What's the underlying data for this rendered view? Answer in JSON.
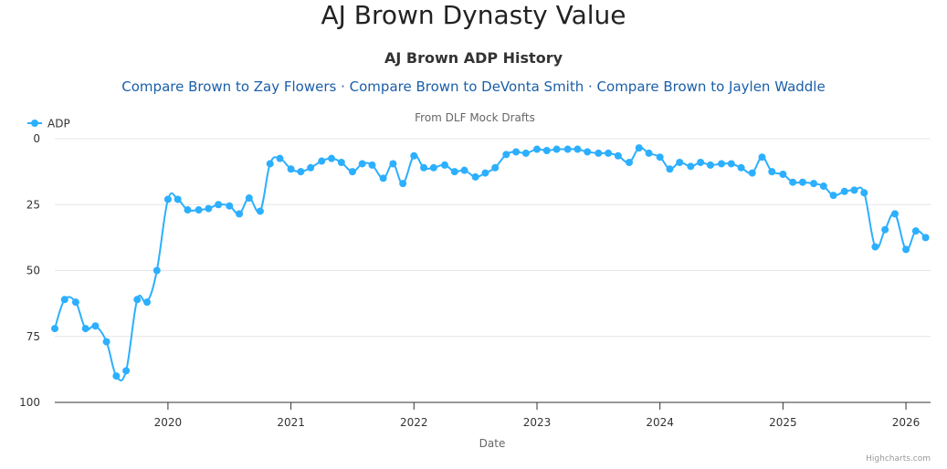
{
  "page": {
    "title": "AJ Brown Dynasty Value"
  },
  "compare_links": [
    {
      "label": "Compare Brown to Zay Flowers"
    },
    {
      "label": "Compare Brown to DeVonta Smith"
    },
    {
      "label": "Compare Brown to Jaylen Waddle"
    }
  ],
  "separator": " · ",
  "colors": {
    "series": "#2caffe",
    "link": "#1a5fa8",
    "grid": "#e6e6e6"
  },
  "chart_data": {
    "type": "line",
    "title": "AJ Brown ADP History",
    "subtitle": "From DLF Mock Drafts",
    "xlabel": "Date",
    "ylabel": "",
    "legend": "top-left",
    "credits": "Highcharts.com",
    "grid": true,
    "ylim": [
      0,
      100
    ],
    "y_reversed": true,
    "y_ticks": [
      "0",
      "25",
      "50",
      "75",
      "100"
    ],
    "xlim": [
      2019.08,
      2026.2
    ],
    "x_ticks": [
      "2020",
      "2021",
      "2022",
      "2023",
      "2024",
      "2025",
      "2026"
    ],
    "series": [
      {
        "name": "ADP",
        "x": [
          2019.08,
          2019.16,
          2019.25,
          2019.33,
          2019.41,
          2019.5,
          2019.58,
          2019.66,
          2019.75,
          2019.83,
          2019.91,
          2020.0,
          2020.08,
          2020.16,
          2020.25,
          2020.33,
          2020.41,
          2020.5,
          2020.58,
          2020.66,
          2020.75,
          2020.83,
          2020.91,
          2021.0,
          2021.08,
          2021.16,
          2021.25,
          2021.33,
          2021.41,
          2021.5,
          2021.58,
          2021.66,
          2021.75,
          2021.83,
          2021.91,
          2022.0,
          2022.08,
          2022.16,
          2022.25,
          2022.33,
          2022.41,
          2022.5,
          2022.58,
          2022.66,
          2022.75,
          2022.83,
          2022.91,
          2023.0,
          2023.08,
          2023.16,
          2023.25,
          2023.33,
          2023.41,
          2023.5,
          2023.58,
          2023.66,
          2023.75,
          2023.83,
          2023.91,
          2024.0,
          2024.08,
          2024.16,
          2024.25,
          2024.33,
          2024.41,
          2024.5,
          2024.58,
          2024.66,
          2024.75,
          2024.83,
          2024.91,
          2025.0,
          2025.08,
          2025.16,
          2025.25,
          2025.33,
          2025.41,
          2025.5,
          2025.58,
          2025.66,
          2025.75,
          2025.83,
          2025.91,
          2026.0,
          2026.08,
          2026.16
        ],
        "values": [
          72,
          61,
          62,
          72,
          71,
          77,
          90,
          88,
          61,
          62,
          50,
          23,
          23,
          27,
          27,
          26.5,
          25,
          25.5,
          28.5,
          22.5,
          27.5,
          9.5,
          7.5,
          11.5,
          12.5,
          11,
          8.5,
          7.5,
          9,
          12.5,
          9.5,
          10,
          15,
          9.5,
          17,
          6.5,
          11,
          11,
          10,
          12.5,
          12,
          14.5,
          13,
          11,
          6,
          5,
          5.5,
          4,
          4.5,
          4,
          4,
          4,
          5,
          5.5,
          5.5,
          6.5,
          9,
          3.5,
          5.5,
          7,
          11.5,
          9,
          10.5,
          9,
          10,
          9.5,
          9.5,
          11,
          13,
          7,
          12.5,
          13.5,
          16.5,
          16.5,
          17,
          18,
          21.5,
          20,
          19.5,
          20.5,
          41,
          34.5,
          28.5,
          42,
          35,
          37.5
        ]
      }
    ]
  }
}
